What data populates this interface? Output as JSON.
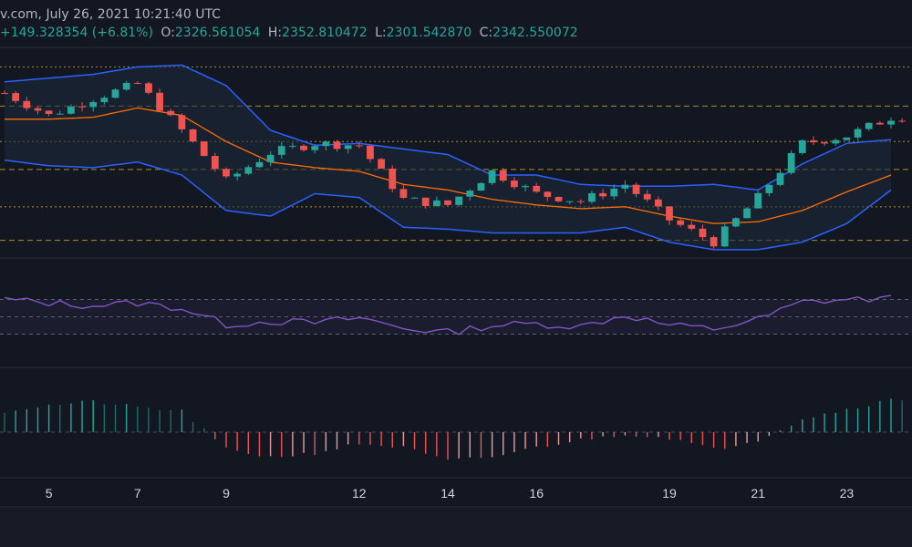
{
  "header": {
    "line1": "v.com, July 26, 2021 10:21:40 UTC",
    "change": "+149.328354 (+6.81%)",
    "o_label": "O:",
    "o_value": "2326.561054",
    "h_label": "H:",
    "h_value": "2352.810472",
    "l_label": "L:",
    "l_value": "2301.542870",
    "c_label": "C:",
    "c_value": "2342.550072"
  },
  "colors": {
    "background": "#131722",
    "up": "#26a69a",
    "down": "#ef5350",
    "bollinger": "#2962ff",
    "basis": "#ff6d00",
    "rsi": "#7e57c2",
    "level_line": "#c9a227",
    "hist_up": "#26a69a",
    "hist_down": "#ef5350"
  },
  "chart_data": [
    {
      "type": "candlestick",
      "title": "",
      "x": [
        "Jul 4",
        "Jul 5",
        "Jul 6",
        "Jul 7",
        "Jul 8",
        "Jul 9",
        "Jul 10",
        "Jul 11",
        "Jul 12",
        "Jul 13",
        "Jul 14",
        "Jul 15",
        "Jul 16",
        "Jul 17",
        "Jul 18",
        "Jul 19",
        "Jul 20",
        "Jul 21",
        "Jul 22",
        "Jul 23",
        "Jul 24"
      ],
      "close": [
        2320,
        2200,
        2290,
        2370,
        2120,
        1850,
        2000,
        2050,
        2040,
        1750,
        1720,
        1900,
        1780,
        1740,
        1830,
        1640,
        1520,
        1760,
        2050,
        2090,
        2190
      ],
      "ylim": [
        1450,
        2550
      ],
      "bollinger_upper": [
        2380,
        2400,
        2420,
        2460,
        2470,
        2360,
        2120,
        2040,
        2050,
        2020,
        1990,
        1880,
        1880,
        1830,
        1820,
        1820,
        1830,
        1800,
        1940,
        2050,
        2070
      ],
      "bollinger_lower": [
        1960,
        1930,
        1920,
        1950,
        1880,
        1690,
        1660,
        1780,
        1760,
        1600,
        1590,
        1570,
        1570,
        1570,
        1600,
        1520,
        1480,
        1480,
        1520,
        1620,
        1800
      ],
      "basis": [
        2180,
        2180,
        2190,
        2240,
        2200,
        2060,
        1950,
        1920,
        1900,
        1830,
        1800,
        1750,
        1720,
        1700,
        1710,
        1660,
        1620,
        1630,
        1690,
        1790,
        1880
      ],
      "horizontal_levels": [
        2460,
        2250,
        2060,
        1910,
        1710,
        1530
      ],
      "grid": false
    },
    {
      "type": "line",
      "title": "",
      "x": [
        "Jul 4",
        "Jul 5",
        "Jul 6",
        "Jul 7",
        "Jul 8",
        "Jul 9",
        "Jul 10",
        "Jul 11",
        "Jul 12",
        "Jul 13",
        "Jul 14",
        "Jul 15",
        "Jul 16",
        "Jul 17",
        "Jul 18",
        "Jul 19",
        "Jul 20",
        "Jul 21",
        "Jul 22",
        "Jul 23",
        "Jul 24"
      ],
      "series": [
        {
          "values": [
            70,
            66,
            63,
            66,
            60,
            41,
            45,
            43,
            49,
            37,
            32,
            40,
            42,
            39,
            52,
            40,
            36,
            47,
            67,
            70,
            71
          ]
        }
      ],
      "ylim": [
        0,
        100
      ],
      "band": [
        30,
        70
      ],
      "midline": 50
    },
    {
      "type": "bar",
      "title": "",
      "x": [
        "Jul 4",
        "Jul 5",
        "Jul 6",
        "Jul 7",
        "Jul 8",
        "Jul 9",
        "Jul 10",
        "Jul 11",
        "Jul 12",
        "Jul 13",
        "Jul 14",
        "Jul 15",
        "Jul 16",
        "Jul 17",
        "Jul 18",
        "Jul 19",
        "Jul 20",
        "Jul 21",
        "Jul 22",
        "Jul 23",
        "Jul 24"
      ],
      "values": [
        22,
        28,
        32,
        26,
        22,
        -18,
        -26,
        -22,
        -12,
        -16,
        -30,
        -26,
        -16,
        -8,
        -2,
        -6,
        -18,
        -8,
        14,
        24,
        34
      ],
      "ylim": [
        -40,
        40
      ]
    }
  ],
  "x_axis": {
    "ticks": [
      {
        "label": "5",
        "index": 1
      },
      {
        "label": "7",
        "index": 3
      },
      {
        "label": "9",
        "index": 5
      },
      {
        "label": "12",
        "index": 8
      },
      {
        "label": "14",
        "index": 10
      },
      {
        "label": "16",
        "index": 12
      },
      {
        "label": "19",
        "index": 15
      },
      {
        "label": "21",
        "index": 17
      },
      {
        "label": "23",
        "index": 19
      }
    ]
  }
}
